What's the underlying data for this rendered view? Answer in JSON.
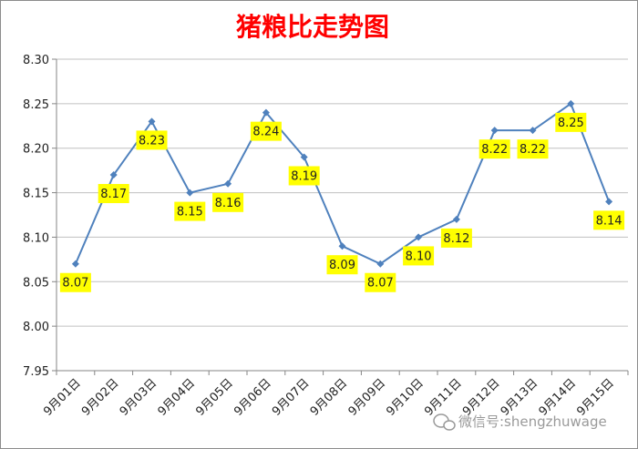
{
  "chart_data": {
    "type": "line",
    "title": "猪粮比走势图",
    "xlabel": "",
    "ylabel": "",
    "categories": [
      "9月01日",
      "9月02日",
      "9月03日",
      "9月04日",
      "9月05日",
      "9月06日",
      "9月07日",
      "9月08日",
      "9月09日",
      "9月10日",
      "9月11日",
      "9月12日",
      "9月13日",
      "9月14日",
      "9月15日"
    ],
    "values": [
      8.07,
      8.17,
      8.23,
      8.15,
      8.16,
      8.24,
      8.19,
      8.09,
      8.07,
      8.1,
      8.12,
      8.22,
      8.22,
      8.25,
      8.14
    ],
    "data_labels": [
      "8.07",
      "8.17",
      "8.23",
      "8.15",
      "8.16",
      "8.24",
      "8.19",
      "8.09",
      "8.07",
      "8.10",
      "8.12",
      "8.22",
      "8.22",
      "8.25",
      "8.14"
    ],
    "y_ticks": [
      "7.95",
      "8.00",
      "8.05",
      "8.10",
      "8.15",
      "8.20",
      "8.25",
      "8.30"
    ],
    "ylim": [
      7.95,
      8.3
    ],
    "grid": true,
    "legend": "none",
    "colors": {
      "line": "#4f81bd",
      "label_bg": "#ffff00",
      "title": "#ff0000",
      "grid": "#c0c0c0"
    }
  },
  "watermark": "微信号:shengzhuwage"
}
